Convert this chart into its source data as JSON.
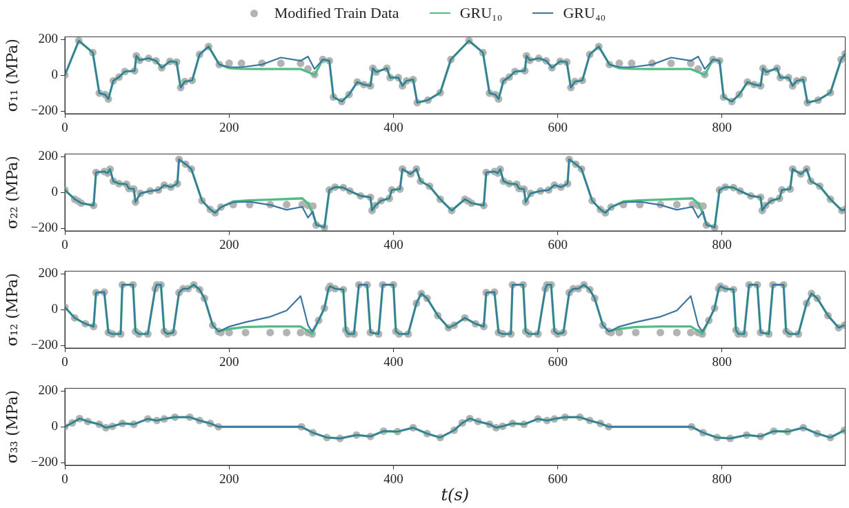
{
  "chart_data": [
    {
      "type": "line",
      "ylabel": "σ₁₁ (MPa)",
      "legend": "top",
      "xlim": [
        0,
        950
      ],
      "xticks": [
        0,
        200,
        400,
        600,
        800
      ],
      "ylim": [
        -215,
        215
      ],
      "yticks": [
        -200,
        0,
        200
      ],
      "x": [
        0,
        17,
        34,
        42,
        49,
        53,
        59,
        66,
        73,
        85,
        87,
        91,
        102,
        111,
        118,
        128,
        136,
        141,
        146,
        155,
        164,
        175,
        188,
        200,
        215,
        240,
        263,
        287,
        296,
        304,
        314,
        322,
        327,
        337,
        346,
        356,
        364,
        372,
        375,
        379,
        392,
        396,
        406,
        411,
        416,
        424,
        429,
        442,
        457,
        470,
        492,
        509,
        517,
        524,
        528,
        534,
        541,
        548,
        560,
        562,
        566,
        577,
        586,
        593,
        603,
        611,
        616,
        621,
        630,
        639,
        650,
        663,
        675,
        690,
        715,
        738,
        762,
        771,
        779,
        789,
        797,
        802,
        812,
        821,
        831,
        839,
        847,
        850,
        854,
        867,
        871,
        881,
        886,
        891,
        899,
        904,
        917,
        932,
        945,
        950
      ],
      "series": [
        {
          "type": "scatter",
          "name": "Modified Train Data",
          "color": "#b3b3b3",
          "marker": "circle",
          "values": [
            0,
            193,
            127,
            -100,
            -108,
            -133,
            -31,
            -10,
            21,
            25,
            109,
            84,
            95,
            81,
            42,
            78,
            74,
            -69,
            -35,
            -29,
            116,
            161,
            60,
            67,
            67,
            67,
            67,
            67,
            35,
            4,
            88,
            81,
            -122,
            -147,
            -108,
            -38,
            -52,
            -59,
            39,
            18,
            39,
            -13,
            -13,
            -59,
            -31,
            -24,
            -153,
            -139,
            -97,
            88,
            193,
            127,
            -100,
            -108,
            -133,
            -31,
            -10,
            21,
            25,
            109,
            84,
            95,
            81,
            42,
            78,
            74,
            -69,
            -35,
            -29,
            116,
            161,
            60,
            67,
            67,
            67,
            67,
            67,
            35,
            4,
            88,
            81,
            -122,
            -147,
            -108,
            -38,
            -52,
            -59,
            39,
            18,
            39,
            -13,
            -13,
            -59,
            -31,
            -24,
            -153,
            -139,
            -97,
            88,
            120
          ]
        },
        {
          "type": "line",
          "name": "GRU₁₀",
          "color": "#52bb86",
          "marker": "none",
          "values": [
            0,
            193,
            127,
            -100,
            -108,
            -133,
            -31,
            -10,
            21,
            25,
            109,
            84,
            95,
            81,
            42,
            78,
            74,
            -69,
            -35,
            -29,
            116,
            161,
            60,
            40,
            36,
            35,
            35,
            35,
            18,
            1,
            88,
            81,
            -122,
            -147,
            -108,
            -38,
            -52,
            -59,
            39,
            18,
            39,
            -13,
            -13,
            -59,
            -31,
            -24,
            -153,
            -139,
            -97,
            88,
            193,
            127,
            -100,
            -108,
            -133,
            -31,
            -10,
            21,
            25,
            109,
            84,
            95,
            81,
            42,
            78,
            74,
            -69,
            -35,
            -29,
            116,
            161,
            60,
            40,
            36,
            35,
            35,
            35,
            18,
            1,
            88,
            81,
            -122,
            -147,
            -108,
            -38,
            -52,
            -59,
            39,
            18,
            39,
            -13,
            -13,
            -59,
            -31,
            -24,
            -153,
            -139,
            -97,
            88,
            120
          ]
        },
        {
          "type": "line",
          "name": "GRU₄₀",
          "color": "#3a76a0",
          "marker": "none",
          "values": [
            0,
            193,
            127,
            -100,
            -108,
            -133,
            -31,
            -10,
            21,
            25,
            109,
            84,
            95,
            81,
            42,
            78,
            74,
            -69,
            -35,
            -29,
            116,
            161,
            60,
            46,
            45,
            60,
            99,
            81,
            105,
            35,
            88,
            81,
            -122,
            -147,
            -108,
            -38,
            -52,
            -59,
            39,
            18,
            39,
            -13,
            -13,
            -59,
            -31,
            -24,
            -153,
            -139,
            -97,
            88,
            193,
            127,
            -100,
            -108,
            -133,
            -31,
            -10,
            21,
            25,
            109,
            84,
            95,
            81,
            42,
            78,
            74,
            -69,
            -35,
            -29,
            116,
            161,
            60,
            46,
            45,
            60,
            99,
            81,
            105,
            35,
            88,
            81,
            -122,
            -147,
            -108,
            -38,
            -52,
            -59,
            39,
            18,
            39,
            -13,
            -13,
            -59,
            -31,
            -24,
            -153,
            -139,
            -97,
            88,
            120
          ]
        }
      ]
    },
    {
      "type": "line",
      "ylabel": "σ₂₂ (MPa)",
      "xlim": [
        0,
        950
      ],
      "xticks": [
        0,
        200,
        400,
        600,
        800
      ],
      "ylim": [
        -215,
        215
      ],
      "yticks": [
        -200,
        0,
        200
      ],
      "x": [
        0,
        12,
        16,
        20,
        35,
        38,
        48,
        52,
        55,
        59,
        66,
        75,
        78,
        84,
        86,
        92,
        104,
        114,
        121,
        129,
        137,
        139,
        147,
        154,
        167,
        177,
        183,
        190,
        205,
        225,
        250,
        270,
        289,
        296,
        302,
        306,
        316,
        322,
        329,
        339,
        347,
        360,
        372,
        374,
        378,
        385,
        395,
        398,
        408,
        411,
        421,
        428,
        433,
        444,
        457,
        471,
        487,
        491,
        495,
        510,
        513,
        523,
        527,
        530,
        534,
        541,
        550,
        553,
        559,
        561,
        567,
        579,
        589,
        596,
        604,
        612,
        614,
        622,
        629,
        642,
        652,
        658,
        665,
        680,
        700,
        725,
        745,
        764,
        771,
        777,
        781,
        791,
        797,
        804,
        814,
        822,
        835,
        847,
        849,
        853,
        860,
        870,
        873,
        883,
        886,
        896,
        903,
        908,
        919,
        932,
        946,
        950
      ],
      "series": [
        {
          "type": "scatter",
          "color": "#b3b3b3",
          "marker": "circle",
          "values": [
            14,
            -38,
            -48,
            -60,
            -73,
            112,
            117,
            108,
            130,
            63,
            49,
            46,
            22,
            19,
            -54,
            -5,
            8,
            14,
            41,
            30,
            49,
            185,
            158,
            131,
            -46,
            -95,
            -114,
            -82,
            -68,
            -68,
            -68,
            -68,
            -68,
            -72,
            -76,
            -182,
            -196,
            14,
            30,
            27,
            8,
            -19,
            -27,
            -101,
            -73,
            -46,
            -33,
            14,
            19,
            131,
            103,
            131,
            63,
            35,
            -38,
            -101,
            -38,
            -48,
            -60,
            -73,
            112,
            117,
            108,
            130,
            63,
            49,
            46,
            22,
            19,
            -54,
            -5,
            8,
            14,
            41,
            30,
            49,
            185,
            158,
            131,
            -46,
            -95,
            -114,
            -82,
            -68,
            -68,
            -68,
            -68,
            -68,
            -72,
            -76,
            -182,
            -196,
            14,
            30,
            27,
            8,
            -19,
            -27,
            -101,
            -73,
            -46,
            -33,
            14,
            19,
            131,
            103,
            131,
            63,
            35,
            -38,
            -101,
            -95
          ]
        },
        {
          "type": "line",
          "color": "#52bb86",
          "marker": "none",
          "values": [
            14,
            -38,
            -48,
            -60,
            -73,
            112,
            117,
            108,
            130,
            63,
            49,
            46,
            22,
            19,
            -54,
            -5,
            8,
            14,
            41,
            30,
            49,
            185,
            158,
            131,
            -46,
            -95,
            -114,
            -82,
            -50,
            -44,
            -40,
            -37,
            -33,
            -62,
            -120,
            -175,
            -196,
            14,
            30,
            27,
            8,
            -19,
            -27,
            -101,
            -73,
            -46,
            -33,
            14,
            19,
            131,
            103,
            131,
            63,
            35,
            -38,
            -101,
            -38,
            -48,
            -60,
            -73,
            112,
            117,
            108,
            130,
            63,
            49,
            46,
            22,
            19,
            -54,
            -5,
            8,
            14,
            41,
            30,
            49,
            185,
            158,
            131,
            -46,
            -95,
            -114,
            -82,
            -50,
            -44,
            -40,
            -37,
            -33,
            -62,
            -120,
            -175,
            -196,
            14,
            30,
            27,
            8,
            -19,
            -27,
            -101,
            -73,
            -46,
            -33,
            14,
            19,
            131,
            103,
            131,
            63,
            35,
            -38,
            -101,
            -95
          ]
        },
        {
          "type": "line",
          "color": "#3a76a0",
          "marker": "none",
          "values": [
            14,
            -38,
            -48,
            -60,
            -73,
            112,
            117,
            108,
            130,
            63,
            49,
            46,
            22,
            19,
            -54,
            -5,
            8,
            14,
            41,
            30,
            49,
            185,
            158,
            131,
            -46,
            -95,
            -114,
            -82,
            -55,
            -52,
            -70,
            -97,
            -80,
            -141,
            -106,
            -182,
            -196,
            14,
            30,
            27,
            8,
            -19,
            -27,
            -101,
            -73,
            -46,
            -33,
            14,
            19,
            131,
            103,
            131,
            63,
            35,
            -38,
            -101,
            -38,
            -48,
            -60,
            -73,
            112,
            117,
            108,
            130,
            63,
            49,
            46,
            22,
            19,
            -54,
            -5,
            8,
            14,
            41,
            30,
            49,
            185,
            158,
            131,
            -46,
            -95,
            -114,
            -82,
            -55,
            -52,
            -70,
            -97,
            -80,
            -141,
            -106,
            -182,
            -196,
            14,
            30,
            27,
            8,
            -19,
            -27,
            -101,
            -73,
            -46,
            -33,
            14,
            19,
            131,
            103,
            131,
            63,
            35,
            -38,
            -101,
            -95
          ]
        }
      ]
    },
    {
      "type": "line",
      "ylabel": "σ₁₂ (MPa)",
      "xlim": [
        0,
        950
      ],
      "xticks": [
        0,
        200,
        400,
        600,
        800
      ],
      "ylim": [
        -215,
        215
      ],
      "yticks": [
        -200,
        0,
        200
      ],
      "x": [
        0,
        12,
        25,
        35,
        38,
        48,
        53,
        58,
        68,
        70,
        83,
        86,
        90,
        101,
        110,
        112,
        117,
        121,
        125,
        132,
        139,
        144,
        150,
        157,
        164,
        170,
        180,
        187,
        190,
        200,
        220,
        250,
        270,
        287,
        296,
        301,
        309,
        316,
        321,
        323,
        329,
        339,
        342,
        345,
        352,
        358,
        368,
        372,
        382,
        387,
        400,
        403,
        407,
        418,
        428,
        434,
        441,
        454,
        467,
        474,
        487,
        500,
        510,
        513,
        523,
        528,
        533,
        543,
        545,
        558,
        561,
        565,
        576,
        585,
        587,
        592,
        596,
        600,
        607,
        614,
        619,
        625,
        632,
        639,
        645,
        655,
        662,
        665,
        675,
        695,
        725,
        745,
        762,
        771,
        776,
        784,
        791,
        796,
        798,
        804,
        814,
        817,
        820,
        827,
        833,
        843,
        847,
        857,
        862,
        875,
        878,
        882,
        893,
        903,
        909,
        916,
        929,
        942,
        949
      ],
      "series": [
        {
          "type": "scatter",
          "color": "#b3b3b3",
          "marker": "circle",
          "values": [
            14,
            -46,
            -79,
            -95,
            95,
            98,
            -128,
            -136,
            -136,
            139,
            139,
            -122,
            -136,
            -136,
            117,
            139,
            139,
            -122,
            -136,
            -128,
            95,
            117,
            117,
            139,
            112,
            63,
            -87,
            -122,
            -128,
            -128,
            -128,
            -128,
            -128,
            -128,
            -128,
            -136,
            -60,
            8,
            117,
            131,
            117,
            112,
            -114,
            -136,
            -136,
            139,
            139,
            -128,
            -136,
            139,
            139,
            -122,
            -136,
            -136,
            35,
            90,
            63,
            -33,
            -101,
            -87,
            -46,
            -79,
            -95,
            95,
            98,
            -128,
            -136,
            -136,
            139,
            139,
            -122,
            -136,
            -136,
            117,
            139,
            139,
            -122,
            -136,
            -128,
            95,
            117,
            117,
            139,
            112,
            63,
            -87,
            -122,
            -128,
            -128,
            -128,
            -128,
            -128,
            -128,
            -128,
            -136,
            -60,
            8,
            117,
            131,
            117,
            112,
            -114,
            -136,
            -136,
            139,
            139,
            -128,
            -136,
            139,
            139,
            -122,
            -136,
            -136,
            35,
            90,
            63,
            -33,
            -101,
            -87
          ]
        },
        {
          "type": "line",
          "color": "#52bb86",
          "marker": "none",
          "values": [
            14,
            -46,
            -79,
            -95,
            95,
            98,
            -128,
            -136,
            -136,
            139,
            139,
            -122,
            -136,
            -136,
            117,
            139,
            139,
            -122,
            -136,
            -128,
            95,
            117,
            117,
            139,
            112,
            63,
            -87,
            -122,
            -118,
            -108,
            -97,
            -94,
            -94,
            -94,
            -120,
            -136,
            -60,
            8,
            117,
            131,
            117,
            112,
            -114,
            -136,
            -136,
            139,
            139,
            -128,
            -136,
            139,
            139,
            -122,
            -136,
            -136,
            35,
            90,
            63,
            -33,
            -101,
            -87,
            -46,
            -79,
            -95,
            95,
            98,
            -128,
            -136,
            -136,
            139,
            139,
            -122,
            -136,
            -136,
            117,
            139,
            139,
            -122,
            -136,
            -128,
            95,
            117,
            117,
            139,
            112,
            63,
            -87,
            -122,
            -118,
            -108,
            -97,
            -94,
            -94,
            -94,
            -120,
            -136,
            -60,
            8,
            117,
            131,
            117,
            112,
            -114,
            -136,
            -136,
            139,
            139,
            -128,
            -136,
            139,
            139,
            -122,
            -136,
            -136,
            35,
            90,
            63,
            -33,
            -101,
            -87
          ]
        },
        {
          "type": "line",
          "color": "#3a76a0",
          "marker": "none",
          "values": [
            14,
            -46,
            -79,
            -95,
            95,
            98,
            -128,
            -136,
            -136,
            139,
            139,
            -122,
            -136,
            -136,
            117,
            139,
            139,
            -122,
            -136,
            -128,
            95,
            117,
            117,
            139,
            112,
            63,
            -87,
            -122,
            -118,
            -95,
            -70,
            -40,
            -5,
            76,
            -87,
            -122,
            -60,
            8,
            117,
            131,
            117,
            112,
            -114,
            -136,
            -136,
            139,
            139,
            -128,
            -136,
            139,
            139,
            -122,
            -136,
            -136,
            35,
            90,
            63,
            -33,
            -101,
            -87,
            -46,
            -79,
            -95,
            95,
            98,
            -128,
            -136,
            -136,
            139,
            139,
            -122,
            -136,
            -136,
            117,
            139,
            139,
            -122,
            -136,
            -128,
            95,
            117,
            117,
            139,
            112,
            63,
            -87,
            -122,
            -118,
            -95,
            -70,
            -40,
            -5,
            76,
            -87,
            -122,
            -60,
            8,
            117,
            131,
            117,
            112,
            -114,
            -136,
            -136,
            139,
            139,
            -128,
            -136,
            139,
            139,
            -122,
            -136,
            -136,
            35,
            90,
            63,
            -33,
            -101,
            -87
          ]
        }
      ]
    },
    {
      "type": "line",
      "ylabel": "σ₃₃ (MPa)",
      "xlabel": "t(s)",
      "xlim": [
        0,
        950
      ],
      "xticks": [
        0,
        200,
        400,
        600,
        800
      ],
      "ylim": [
        -215,
        215
      ],
      "yticks": [
        -200,
        0,
        200
      ],
      "x": [
        0,
        9,
        18,
        28,
        42,
        50,
        58,
        70,
        84,
        101,
        112,
        121,
        134,
        152,
        164,
        177,
        187,
        288,
        302,
        319,
        335,
        355,
        372,
        388,
        405,
        424,
        441,
        457,
        474,
        484,
        493,
        503,
        517,
        525,
        533,
        545,
        559,
        576,
        587,
        596,
        609,
        627,
        639,
        652,
        662,
        763,
        777,
        794,
        810,
        830,
        847,
        863,
        880,
        899,
        916,
        932,
        949
      ],
      "series": [
        {
          "type": "scatter",
          "color": "#b3b3b3",
          "marker": "circle",
          "values": [
            0,
            22,
            46,
            30,
            14,
            -5,
            3,
            19,
            14,
            44,
            35,
            44,
            54,
            54,
            35,
            19,
            0,
            0,
            -33,
            -60,
            -65,
            -46,
            -54,
            -24,
            -27,
            -5,
            -38,
            -60,
            -19,
            22,
            46,
            30,
            14,
            -5,
            3,
            19,
            14,
            44,
            35,
            44,
            54,
            54,
            35,
            19,
            0,
            0,
            -33,
            -60,
            -65,
            -46,
            -54,
            -24,
            -27,
            -5,
            -38,
            -60,
            -19
          ]
        },
        {
          "type": "line",
          "color": "#52bb86",
          "marker": "none",
          "values": [
            0,
            22,
            46,
            30,
            14,
            -5,
            3,
            19,
            14,
            44,
            35,
            44,
            54,
            54,
            35,
            19,
            0,
            0,
            -33,
            -60,
            -65,
            -46,
            -54,
            -24,
            -27,
            -5,
            -38,
            -60,
            -19,
            22,
            46,
            30,
            14,
            -5,
            3,
            19,
            14,
            44,
            35,
            44,
            54,
            54,
            35,
            19,
            0,
            0,
            -33,
            -60,
            -65,
            -46,
            -54,
            -24,
            -27,
            -5,
            -38,
            -60,
            -19
          ]
        },
        {
          "type": "line",
          "color": "#3a76a0",
          "marker": "none",
          "values": [
            0,
            22,
            46,
            30,
            14,
            -5,
            3,
            19,
            14,
            44,
            35,
            44,
            54,
            54,
            35,
            19,
            0,
            0,
            -33,
            -60,
            -65,
            -46,
            -54,
            -24,
            -27,
            -5,
            -38,
            -60,
            -19,
            22,
            46,
            30,
            14,
            -5,
            3,
            19,
            14,
            44,
            35,
            44,
            54,
            54,
            35,
            19,
            0,
            0,
            -33,
            -60,
            -65,
            -46,
            -54,
            -24,
            -27,
            -5,
            -38,
            -60,
            -19
          ]
        }
      ]
    }
  ]
}
